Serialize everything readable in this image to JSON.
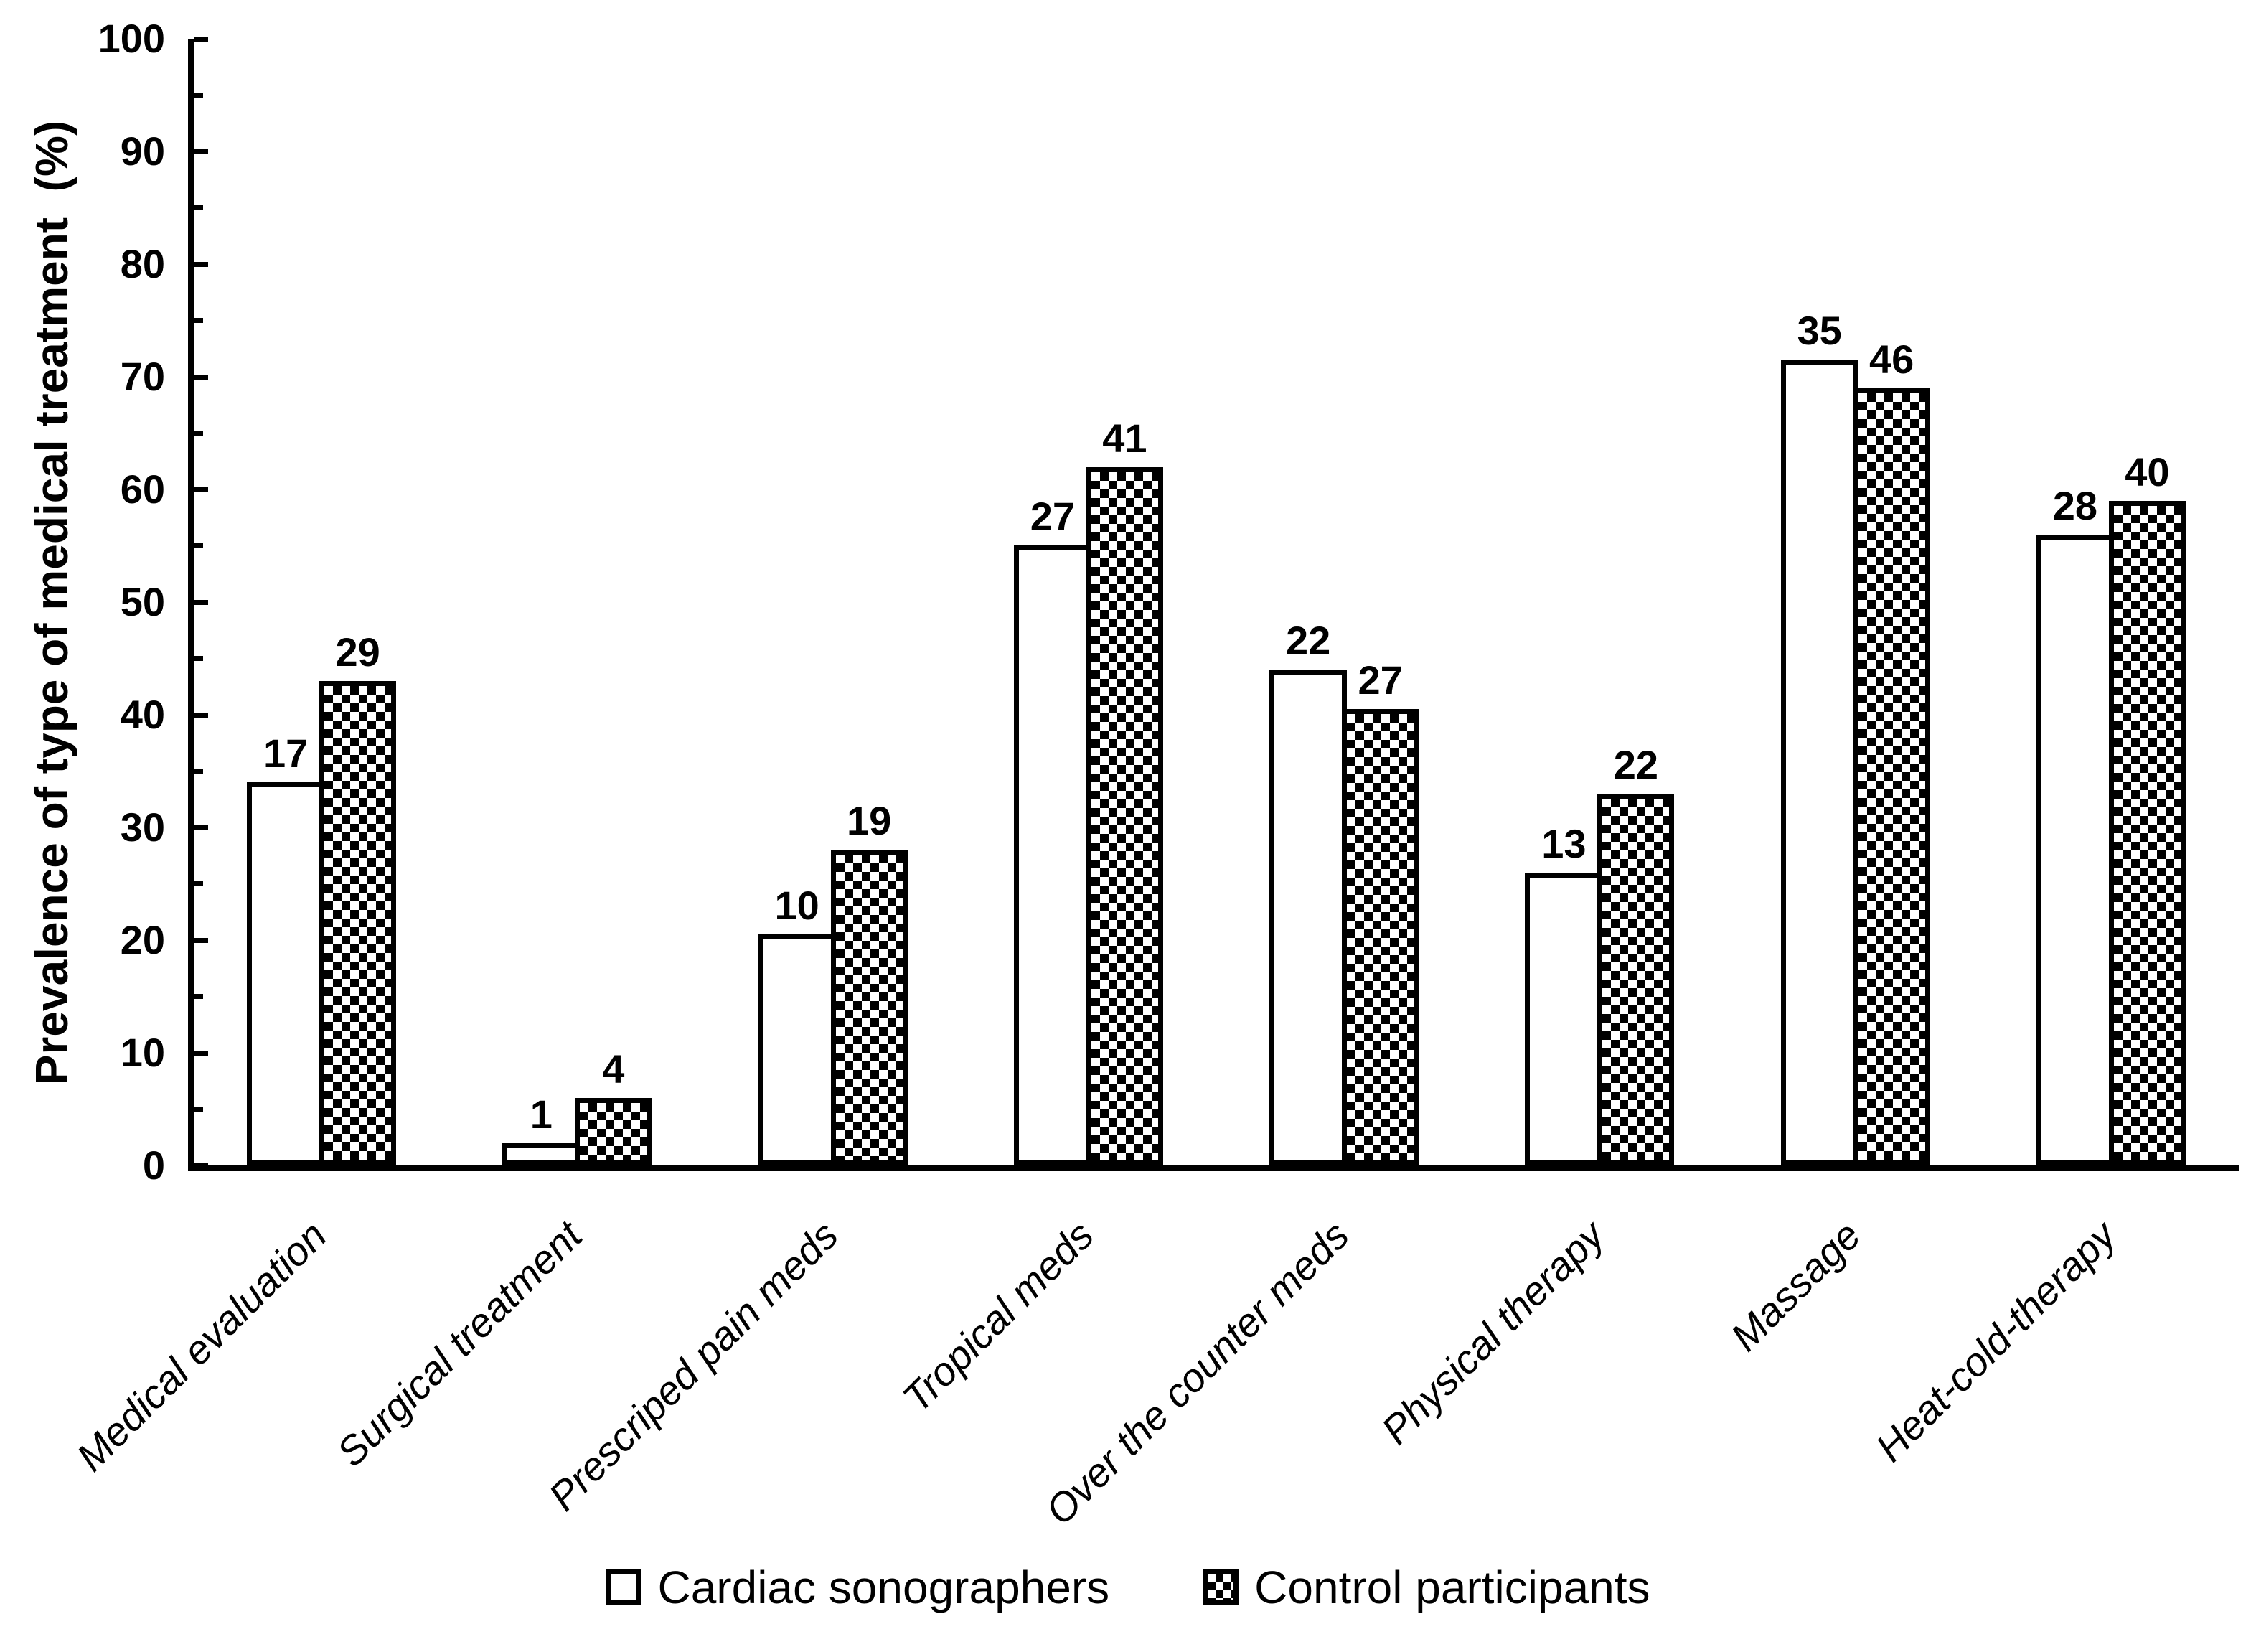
{
  "chart_data": {
    "type": "bar",
    "title": "",
    "xlabel": "",
    "ylabel": "Prevalence of type of medical treatment  (%)",
    "ylim": [
      0,
      100
    ],
    "grid": false,
    "legend_position": "bottom",
    "y_axis": {
      "major_ticks": [
        0,
        10,
        20,
        30,
        40,
        50,
        60,
        70,
        80,
        90,
        100
      ],
      "minor_tick_step": 5
    },
    "categories": [
      "Medical evaluation",
      "Surgical treatment",
      "Prescriped pain meds",
      "Tropical meds",
      "Over the counter meds",
      "Physical therapy",
      "Massage",
      "Heat-cold-therapy"
    ],
    "series": [
      {
        "name": "Cardiac sonographers",
        "pattern": "open",
        "bar_labels": [
          17,
          1,
          10,
          27,
          22,
          13,
          35,
          28
        ],
        "heights_pct": [
          34,
          2,
          20.5,
          55,
          44,
          26,
          71.5,
          56
        ]
      },
      {
        "name": "Control participants",
        "pattern": "checker",
        "bar_labels": [
          29,
          4,
          19,
          41,
          27,
          22,
          46,
          40
        ],
        "heights_pct": [
          43,
          6,
          28,
          62,
          40.5,
          33,
          69,
          59
        ]
      }
    ]
  }
}
